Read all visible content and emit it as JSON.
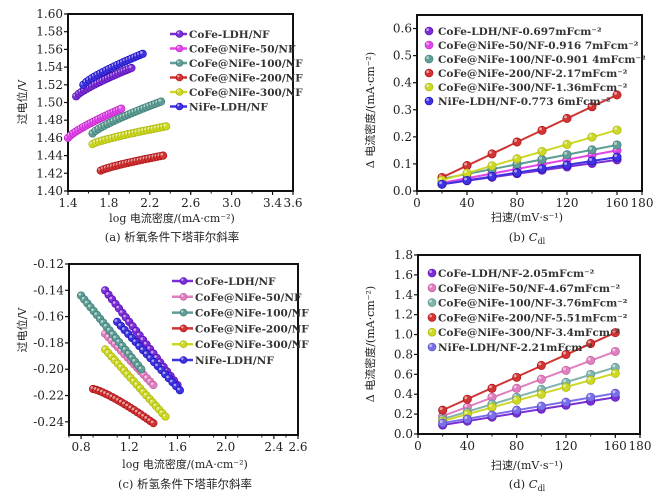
{
  "chart_data": [
    {
      "id": "a",
      "type": "scatter",
      "caption": "(a) 析氧条件下塔菲尔斜率",
      "xlabel": "log 电流密度/(mA·cm⁻²)",
      "ylabel": "过电位/V",
      "xlim": [
        1.4,
        3.6
      ],
      "ylim": [
        1.4,
        1.6
      ],
      "xticks": [
        "1.4",
        "1.8",
        "2.2",
        "2.6",
        "3.0",
        "3.4",
        "3.6"
      ],
      "yticks": [
        "1.40",
        "1.42",
        "1.44",
        "1.46",
        "1.48",
        "1.50",
        "1.52",
        "1.54",
        "1.56",
        "1.58",
        "1.60"
      ],
      "legend_position": "top-right",
      "series": [
        {
          "name": "CoFe-LDH/NF",
          "color": "#7a2fd6",
          "x_range": [
            1.48,
            2.02
          ],
          "y_range": [
            1.507,
            1.539
          ],
          "n": 22
        },
        {
          "name": "CoFe@NiFe-50/NF",
          "color": "#e046e8",
          "x_range": [
            1.4,
            1.92
          ],
          "y_range": [
            1.46,
            1.493
          ],
          "n": 22
        },
        {
          "name": "CoFe@NiFe-100/NF",
          "color": "#5f9e96",
          "x_range": [
            1.64,
            2.31
          ],
          "y_range": [
            1.465,
            1.501
          ],
          "n": 24
        },
        {
          "name": "CoFe@NiFe-200/NF",
          "color": "#d03434",
          "x_range": [
            1.72,
            2.33
          ],
          "y_range": [
            1.423,
            1.44
          ],
          "n": 22
        },
        {
          "name": "CoFe@NiFe-300/NF",
          "color": "#cdd826",
          "x_range": [
            1.64,
            2.36
          ],
          "y_range": [
            1.453,
            1.473
          ],
          "n": 24
        },
        {
          "name": "NiFe-LDH/NF",
          "color": "#3f33e0",
          "x_range": [
            1.55,
            2.13
          ],
          "y_range": [
            1.52,
            1.555
          ],
          "n": 22
        }
      ]
    },
    {
      "id": "b",
      "type": "line",
      "caption": "(b) C",
      "caption_sub": "dl",
      "xlabel": "扫速/(mV·s⁻¹)",
      "ylabel": "Δ 电流密度/(mA·cm⁻²)",
      "xlim": [
        0,
        180
      ],
      "ylim": [
        0,
        0.65
      ],
      "xticks": [
        "0",
        "40",
        "80",
        "120",
        "160",
        "180"
      ],
      "yticks": [
        "0.0",
        "0.1",
        "0.2",
        "0.3",
        "0.4",
        "0.5",
        "0.6"
      ],
      "x": [
        20,
        40,
        60,
        80,
        100,
        120,
        140,
        160
      ],
      "legend_position": "top-left",
      "series": [
        {
          "name": "CoFe-LDH/NF-0.697mFcm⁻²",
          "color": "#7a2fd6",
          "values": [
            0.025,
            0.038,
            0.051,
            0.064,
            0.077,
            0.089,
            0.102,
            0.115
          ]
        },
        {
          "name": "CoFe@NiFe-50/NF-0.916 7mFcm⁻²",
          "color": "#e046e8",
          "values": [
            0.03,
            0.047,
            0.064,
            0.081,
            0.099,
            0.116,
            0.133,
            0.15
          ]
        },
        {
          "name": "CoFe@NiFe-100/NF-0.901 4mFcm⁻²",
          "color": "#5f9e96",
          "values": [
            0.045,
            0.063,
            0.081,
            0.099,
            0.116,
            0.134,
            0.152,
            0.17
          ]
        },
        {
          "name": "CoFe@NiFe-200/NF-2.17mFcm⁻²",
          "color": "#d03434",
          "values": [
            0.05,
            0.094,
            0.137,
            0.181,
            0.224,
            0.268,
            0.311,
            0.355
          ]
        },
        {
          "name": "CoFe@NiFe-300/NF-1.36mFcm⁻²",
          "color": "#cdd826",
          "values": [
            0.04,
            0.066,
            0.093,
            0.119,
            0.146,
            0.172,
            0.199,
            0.225
          ]
        },
        {
          "name": "NiFe-LDH/NF-0.773 6mFcm⁻²",
          "color": "#3f33e0",
          "values": [
            0.025,
            0.039,
            0.054,
            0.068,
            0.082,
            0.096,
            0.111,
            0.125
          ]
        }
      ]
    },
    {
      "id": "c",
      "type": "scatter",
      "caption": "(c) 析氢条件下塔菲尔斜率",
      "xlabel": "log 电流密度/(mA·cm⁻²)",
      "ylabel": "过电位/V",
      "xlim": [
        0.7,
        2.6
      ],
      "ylim": [
        -0.25,
        -0.12
      ],
      "xticks": [
        "0.8",
        "1.2",
        "1.6",
        "2.0",
        "2.4",
        "2.6"
      ],
      "yticks": [
        "-0.24",
        "-0.22",
        "-0.20",
        "-0.18",
        "-0.16",
        "-0.14",
        "-0.12"
      ],
      "legend_position": "top-right",
      "series": [
        {
          "name": "CoFe-LDH/NF",
          "color": "#7a2fd6",
          "x_range": [
            1.0,
            1.6
          ],
          "y_range": [
            -0.14,
            -0.212
          ],
          "n": 22
        },
        {
          "name": "CoFe@NiFe-50/NF",
          "color": "#e07fc0",
          "x_range": [
            1.0,
            1.4
          ],
          "y_range": [
            -0.173,
            -0.212
          ],
          "n": 16
        },
        {
          "name": "CoFe@NiFe-100/NF",
          "color": "#5f9e96",
          "x_range": [
            0.8,
            1.3
          ],
          "y_range": [
            -0.144,
            -0.2
          ],
          "n": 20
        },
        {
          "name": "CoFe@NiFe-200/NF",
          "color": "#d03434",
          "x_range": [
            0.9,
            1.4
          ],
          "y_range": [
            -0.215,
            -0.241
          ],
          "n": 20
        },
        {
          "name": "CoFe@NiFe-300/NF",
          "color": "#cdd826",
          "x_range": [
            1.0,
            1.5
          ],
          "y_range": [
            -0.185,
            -0.236
          ],
          "n": 20
        },
        {
          "name": "NiFe-LDH/NF",
          "color": "#3f33e0",
          "x_range": [
            1.1,
            1.62
          ],
          "y_range": [
            -0.164,
            -0.216
          ],
          "n": 18
        }
      ]
    },
    {
      "id": "d",
      "type": "line",
      "caption": "(d) C",
      "caption_sub": "dl",
      "xlabel": "扫速/(mV·s⁻¹)",
      "ylabel": "Δ 电流密度/(mA·cm⁻²)",
      "xlim": [
        0,
        180
      ],
      "ylim": [
        0,
        1.8
      ],
      "xticks": [
        "0",
        "40",
        "80",
        "120",
        "160",
        "180"
      ],
      "yticks": [
        "0.0",
        "0.2",
        "0.4",
        "0.6",
        "0.8",
        "1.0",
        "1.2",
        "1.4",
        "1.6",
        "1.8"
      ],
      "x": [
        20,
        40,
        60,
        80,
        100,
        120,
        140,
        160
      ],
      "legend_position": "top-left",
      "series": [
        {
          "name": "CoFe-LDH/NF-2.05mFcm⁻²",
          "color": "#7a2fd6",
          "values": [
            0.09,
            0.13,
            0.17,
            0.21,
            0.25,
            0.29,
            0.33,
            0.37
          ]
        },
        {
          "name": "CoFe@NiFe-50/NF-4.67mFcm⁻²",
          "color": "#e07fc0",
          "values": [
            0.18,
            0.27,
            0.37,
            0.46,
            0.55,
            0.64,
            0.74,
            0.83
          ]
        },
        {
          "name": "CoFe@NiFe-100/NF-3.76mFcm⁻²",
          "color": "#80b4ae",
          "values": [
            0.15,
            0.22,
            0.3,
            0.37,
            0.45,
            0.52,
            0.6,
            0.67
          ]
        },
        {
          "name": "CoFe@NiFe-200/NF-5.51mFcm⁻²",
          "color": "#d03434",
          "values": [
            0.24,
            0.35,
            0.46,
            0.57,
            0.69,
            0.8,
            0.91,
            1.02
          ]
        },
        {
          "name": "CoFe@NiFe-300/NF-3.4mFcm⁻²",
          "color": "#cdd826",
          "values": [
            0.13,
            0.2,
            0.27,
            0.34,
            0.4,
            0.47,
            0.54,
            0.61
          ]
        },
        {
          "name": "NiFe-LDH/NF-2.21mFcm⁻²",
          "color": "#7a6fe8",
          "values": [
            0.11,
            0.15,
            0.19,
            0.24,
            0.28,
            0.32,
            0.37,
            0.41
          ]
        }
      ]
    }
  ]
}
